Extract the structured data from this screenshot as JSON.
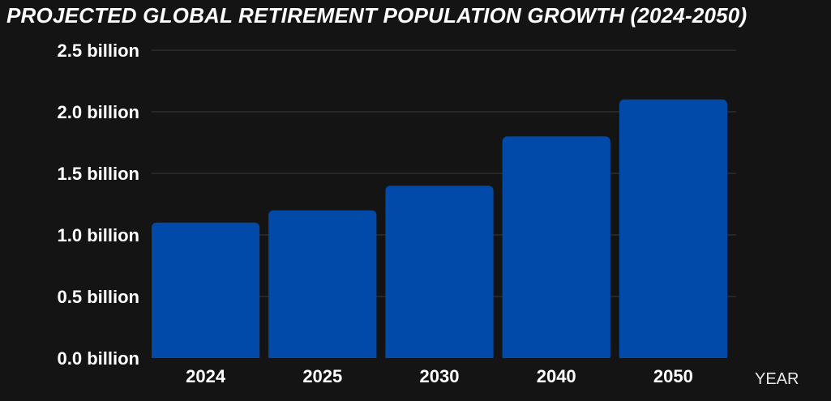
{
  "chart_data": {
    "type": "bar",
    "title": "PROJECTED GLOBAL RETIREMENT POPULATION GROWTH (2024-2050)",
    "xlabel": "YEAR",
    "ylabel": "",
    "categories": [
      "2024",
      "2025",
      "2030",
      "2040",
      "2050"
    ],
    "values": [
      1.1,
      1.2,
      1.4,
      1.8,
      2.1
    ],
    "unit": "billion",
    "ylim": [
      0,
      2.5
    ],
    "yticks": [
      0.0,
      0.5,
      1.0,
      1.5,
      2.0,
      2.5
    ],
    "ytick_labels": [
      "0.0 billion",
      "0.5 billion",
      "1.0 billion",
      "1.5 billion",
      "2.0 billion",
      "2.5 billion"
    ],
    "grid": true,
    "legend": "none",
    "colors": {
      "background": "#141414",
      "bar": "#024aa9",
      "grid": "#3a3a3a",
      "text": "#ffffff"
    }
  }
}
